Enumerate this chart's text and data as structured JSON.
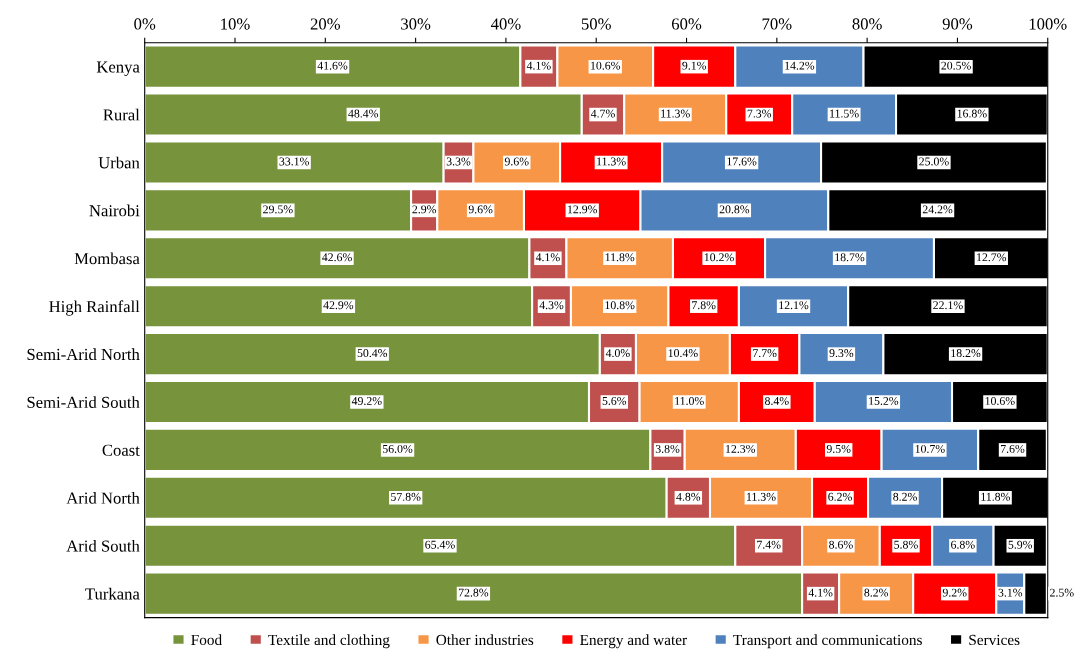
{
  "chart_data": {
    "type": "bar",
    "orientation": "horizontal",
    "stacked": true,
    "grid": false,
    "legend": "bottom",
    "categories": [
      "Kenya",
      "Rural",
      "Urban",
      "Nairobi",
      "Mombasa",
      "High Rainfall",
      "Semi-Arid North",
      "Semi-Arid South",
      "Coast",
      "Arid North",
      "Arid South",
      "Turkana"
    ],
    "xlim": [
      0,
      100
    ],
    "xticks": [
      {
        "value": 0,
        "label": "0%"
      },
      {
        "value": 10,
        "label": "10%"
      },
      {
        "value": 20,
        "label": "20%"
      },
      {
        "value": 30,
        "label": "30%"
      },
      {
        "value": 40,
        "label": "40%"
      },
      {
        "value": 50,
        "label": "50%"
      },
      {
        "value": 60,
        "label": "60%"
      },
      {
        "value": 70,
        "label": "70%"
      },
      {
        "value": 80,
        "label": "80%"
      },
      {
        "value": 90,
        "label": "90%"
      },
      {
        "value": 100,
        "label": "100%"
      }
    ],
    "series": [
      {
        "name": "Food",
        "color": "#77933c",
        "values": [
          41.6,
          48.4,
          33.1,
          29.5,
          42.6,
          42.9,
          50.4,
          49.2,
          56.0,
          57.8,
          65.4,
          72.8
        ],
        "value_labels": [
          "41.6%",
          "48.4%",
          "33.1%",
          "29.5%",
          "42.6%",
          "42.9%",
          "50.4%",
          "49.2%",
          "56.0%",
          "57.8%",
          "65.4%",
          "72.8%"
        ]
      },
      {
        "name": "Textile and clothing",
        "color": "#c0504d",
        "values": [
          4.1,
          4.7,
          3.3,
          2.9,
          4.1,
          4.3,
          4.0,
          5.6,
          3.8,
          4.8,
          7.4,
          4.1
        ],
        "value_labels": [
          "4.1%",
          "4.7%",
          "3.3%",
          "2.9%",
          "4.1%",
          "4.3%",
          "4.0%",
          "5.6%",
          "3.8%",
          "4.8%",
          "7.4%",
          "4.1%"
        ]
      },
      {
        "name": "Other industries",
        "color": "#f79646",
        "values": [
          10.6,
          11.3,
          9.6,
          9.6,
          11.8,
          10.8,
          10.4,
          11.0,
          12.3,
          11.3,
          8.6,
          8.2
        ],
        "value_labels": [
          "10.6%",
          "11.3%",
          "9.6%",
          "9.6%",
          "11.8%",
          "10.8%",
          "10.4%",
          "11.0%",
          "12.3%",
          "11.3%",
          "8.6%",
          "8.2%"
        ]
      },
      {
        "name": "Energy and water",
        "color": "#ff0000",
        "values": [
          9.1,
          7.3,
          11.3,
          12.9,
          10.2,
          7.8,
          7.7,
          8.4,
          9.5,
          6.2,
          5.8,
          9.2
        ],
        "value_labels": [
          "9.1%",
          "7.3%",
          "11.3%",
          "12.9%",
          "10.2%",
          "7.8%",
          "7.7%",
          "8.4%",
          "9.5%",
          "6.2%",
          "5.8%",
          "9.2%"
        ]
      },
      {
        "name": "Transport and communications",
        "color": "#4f81bd",
        "values": [
          14.2,
          11.5,
          17.6,
          20.8,
          18.7,
          12.1,
          9.3,
          15.2,
          10.7,
          8.2,
          6.8,
          3.1
        ],
        "value_labels": [
          "14.2%",
          "11.5%",
          "17.6%",
          "20.8%",
          "18.7%",
          "12.1%",
          "9.3%",
          "15.2%",
          "10.7%",
          "8.2%",
          "6.8%",
          "3.1%"
        ]
      },
      {
        "name": "Services",
        "color": "#000000",
        "values": [
          20.5,
          16.8,
          25.0,
          24.2,
          12.7,
          22.1,
          18.2,
          10.6,
          7.6,
          11.8,
          5.9,
          2.5
        ],
        "value_labels": [
          "20.5%",
          "16.8%",
          "25.0%",
          "24.2%",
          "12.7%",
          "22.1%",
          "18.2%",
          "10.6%",
          "7.6%",
          "11.8%",
          "5.9%",
          "2.5%"
        ]
      }
    ]
  }
}
